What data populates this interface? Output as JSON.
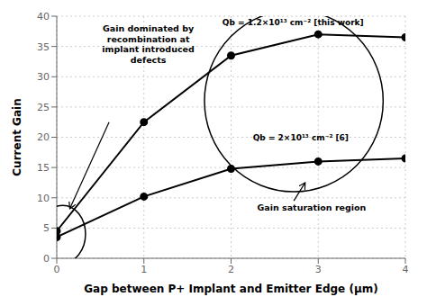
{
  "chart_data": {
    "type": "line",
    "x_label": "Gap between P+ Implant and Emitter Edge (μm)",
    "y_label": "Current Gain",
    "x": [
      0,
      1,
      2,
      3,
      4
    ],
    "series": [
      {
        "name": "Qb = 1.2×10¹³ cm⁻² [this work]",
        "color": "#000000",
        "marker": "circle",
        "values": [
          4.5,
          22.5,
          33.5,
          37.0,
          36.5
        ]
      },
      {
        "name": "Qb = 2×10¹³ cm⁻² [6]",
        "color": "#000000",
        "marker": "circle",
        "values": [
          3.5,
          10.2,
          14.8,
          16.0,
          16.5
        ]
      }
    ],
    "xlim": [
      0,
      4
    ],
    "ylim": [
      0,
      40
    ],
    "xticks": [
      0,
      1,
      2,
      3,
      4
    ],
    "yticks": [
      0,
      5,
      10,
      15,
      20,
      25,
      30,
      35,
      40
    ],
    "grid": true,
    "annotations": [
      "Gain dominated by\nrecombination at\nimplant introduced\ndefects",
      "Gain saturation region"
    ]
  }
}
